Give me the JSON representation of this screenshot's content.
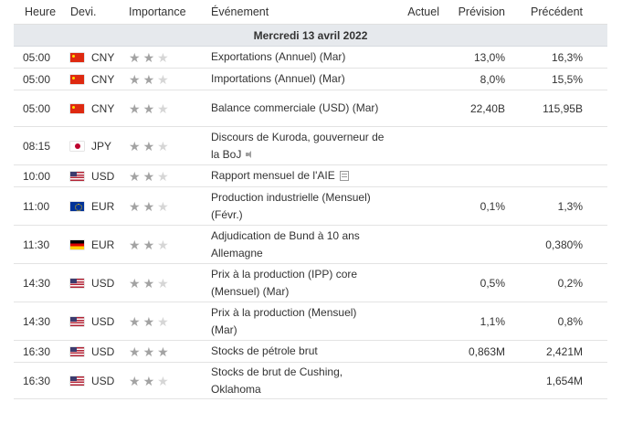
{
  "header": {
    "time": "Heure",
    "currency": "Devi.",
    "importance": "Importance",
    "event": "Événement",
    "actual": "Actuel",
    "forecast": "Prévision",
    "previous": "Précédent"
  },
  "day_label": "Mercredi 13 avril 2022",
  "rows": [
    {
      "time": "05:00",
      "flag": "cn-flag-icon",
      "currency": "CNY",
      "importance": 2,
      "event": "Exportations (Annuel) (Mar)",
      "actual": "",
      "forecast": "13,0%",
      "previous": "16,3%"
    },
    {
      "time": "05:00",
      "flag": "cn-flag-icon",
      "currency": "CNY",
      "importance": 2,
      "event": "Importations (Annuel) (Mar)",
      "actual": "",
      "forecast": "8,0%",
      "previous": "15,5%"
    },
    {
      "time": "05:00",
      "flag": "cn-flag-icon",
      "currency": "CNY",
      "importance": 2,
      "event": "Balance commerciale (USD) (Mar)",
      "actual": "",
      "forecast": "22,40B",
      "previous": "115,95B"
    },
    {
      "time": "08:15",
      "flag": "jp-flag-icon",
      "currency": "JPY",
      "importance": 2,
      "event": "Discours de Kuroda, gouverneur de la BoJ",
      "actual": "",
      "forecast": "",
      "previous": "",
      "icon": "speaker-icon"
    },
    {
      "time": "10:00",
      "flag": "us-flag-icon",
      "currency": "USD",
      "importance": 2,
      "event": "Rapport mensuel de l'AIE",
      "actual": "",
      "forecast": "",
      "previous": "",
      "icon": "document-icon"
    },
    {
      "time": "11:00",
      "flag": "eu-flag-icon",
      "currency": "EUR",
      "importance": 2,
      "event": "Production industrielle (Mensuel) (Févr.)",
      "actual": "",
      "forecast": "0,1%",
      "previous": "1,3%"
    },
    {
      "time": "11:30",
      "flag": "de-flag-icon",
      "currency": "EUR",
      "importance": 2,
      "event": "Adjudication de Bund à 10 ans Allemagne",
      "actual": "",
      "forecast": "",
      "previous": "0,380%"
    },
    {
      "time": "14:30",
      "flag": "us-flag-icon",
      "currency": "USD",
      "importance": 2,
      "event": "Prix à la production (IPP) core (Mensuel) (Mar)",
      "actual": "",
      "forecast": "0,5%",
      "previous": "0,2%"
    },
    {
      "time": "14:30",
      "flag": "us-flag-icon",
      "currency": "USD",
      "importance": 2,
      "event": "Prix à la production (Mensuel) (Mar)",
      "actual": "",
      "forecast": "1,1%",
      "previous": "0,8%"
    },
    {
      "time": "16:30",
      "flag": "us-flag-icon",
      "currency": "USD",
      "importance": 3,
      "event": "Stocks de pétrole brut",
      "actual": "",
      "forecast": "0,863M",
      "previous": "2,421M"
    },
    {
      "time": "16:30",
      "flag": "us-flag-icon",
      "currency": "USD",
      "importance": 2,
      "event": "Stocks de brut de Cushing, Oklahoma",
      "actual": "",
      "forecast": "",
      "previous": "1,654M"
    }
  ],
  "colors": {
    "day_bar": "#e6e9ed",
    "star_on": "#a3a3a3",
    "star_off": "#d6d6d6"
  }
}
